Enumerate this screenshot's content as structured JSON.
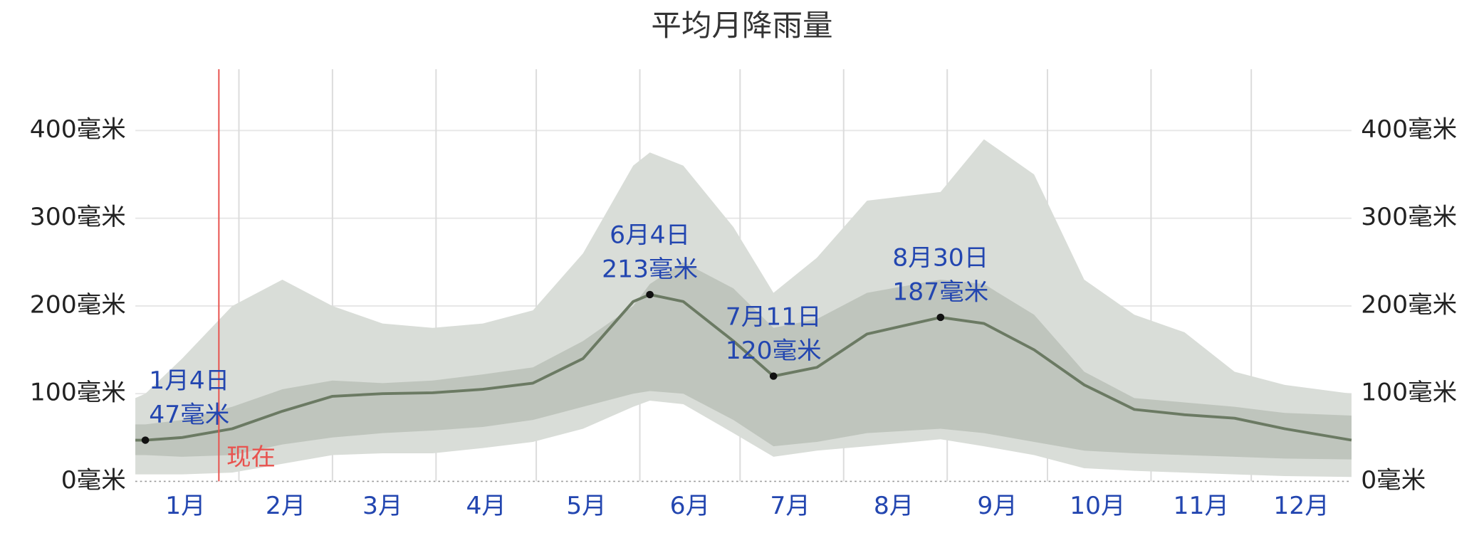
{
  "chart_data": {
    "type": "band-line",
    "title": "平均月降雨量",
    "x": [
      1,
      4,
      15,
      30,
      45,
      60,
      75,
      90,
      105,
      120,
      135,
      150,
      155,
      165,
      180,
      192,
      205,
      220,
      242,
      255,
      270,
      285,
      300,
      315,
      330,
      345,
      365
    ],
    "xlim": [
      1,
      365
    ],
    "xticks": [
      {
        "value": 16,
        "label": "1月"
      },
      {
        "value": 46,
        "label": "2月"
      },
      {
        "value": 75,
        "label": "3月"
      },
      {
        "value": 106,
        "label": "4月"
      },
      {
        "value": 136,
        "label": "5月"
      },
      {
        "value": 167,
        "label": "6月"
      },
      {
        "value": 197,
        "label": "7月"
      },
      {
        "value": 228,
        "label": "8月"
      },
      {
        "value": 259,
        "label": "9月"
      },
      {
        "value": 289,
        "label": "10月"
      },
      {
        "value": 320,
        "label": "11月"
      },
      {
        "value": 350,
        "label": "12月"
      }
    ],
    "xgrid": [
      32,
      60,
      91,
      121,
      152,
      182,
      213,
      244,
      274,
      305,
      335
    ],
    "ylim": [
      0,
      470
    ],
    "yticks": [
      {
        "value": 0,
        "label": "0毫米"
      },
      {
        "value": 100,
        "label": "100毫米"
      },
      {
        "value": 200,
        "label": "200毫米"
      },
      {
        "value": 300,
        "label": "300毫米"
      },
      {
        "value": 400,
        "label": "400毫米"
      }
    ],
    "grid": true,
    "bands": [
      {
        "color": "#d9ddd8",
        "low": [
          8,
          8,
          8,
          10,
          20,
          30,
          32,
          32,
          38,
          45,
          60,
          85,
          92,
          88,
          55,
          28,
          35,
          40,
          48,
          40,
          30,
          15,
          12,
          10,
          8,
          6,
          5
        ],
        "high": [
          95,
          100,
          140,
          200,
          230,
          200,
          180,
          175,
          180,
          195,
          260,
          360,
          375,
          360,
          290,
          215,
          255,
          320,
          330,
          390,
          350,
          230,
          190,
          170,
          125,
          110,
          100
        ]
      },
      {
        "color": "#bfc5bd",
        "low": [
          30,
          30,
          28,
          30,
          42,
          50,
          55,
          58,
          62,
          70,
          85,
          100,
          103,
          100,
          70,
          40,
          45,
          55,
          60,
          55,
          45,
          35,
          32,
          30,
          28,
          26,
          25
        ],
        "high": [
          65,
          65,
          70,
          85,
          105,
          115,
          112,
          115,
          122,
          130,
          160,
          200,
          225,
          250,
          220,
          175,
          185,
          215,
          230,
          225,
          190,
          125,
          95,
          90,
          85,
          78,
          75
        ]
      }
    ],
    "series": [
      {
        "color": "#6b7a63",
        "values": [
          47,
          47,
          50,
          60,
          80,
          97,
          100,
          101,
          105,
          112,
          140,
          205,
          213,
          205,
          160,
          120,
          130,
          168,
          187,
          180,
          150,
          110,
          82,
          76,
          72,
          60,
          47
        ]
      }
    ],
    "annotations": [
      {
        "x": 4,
        "value": 47,
        "date": "1月4日",
        "label": "47毫米"
      },
      {
        "x": 155,
        "value": 213,
        "date": "6月4日",
        "label": "213毫米"
      },
      {
        "x": 192,
        "value": 120,
        "date": "7月11日",
        "label": "120毫米"
      },
      {
        "x": 242,
        "value": 187,
        "date": "8月30日",
        "label": "187毫米"
      }
    ],
    "now": {
      "x": 26,
      "label": "现在",
      "color": "#e8534f"
    }
  }
}
